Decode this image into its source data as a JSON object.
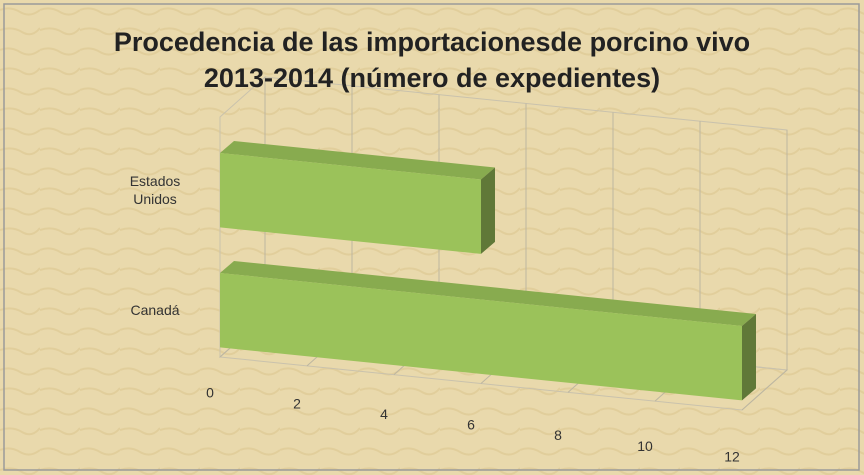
{
  "chart_data": {
    "type": "bar3d",
    "orientation": "horizontal",
    "title": "Procedencia de las importacionesde porcino vivo\n2013-2014 (número de expedientes)",
    "categories": [
      "Canadá",
      "Estados Unidos"
    ],
    "values": [
      12,
      6
    ],
    "color": "#9bc25a",
    "xlim": [
      0,
      12
    ],
    "xticks": [
      0,
      2,
      4,
      6,
      8,
      10,
      12
    ],
    "grid": true
  }
}
